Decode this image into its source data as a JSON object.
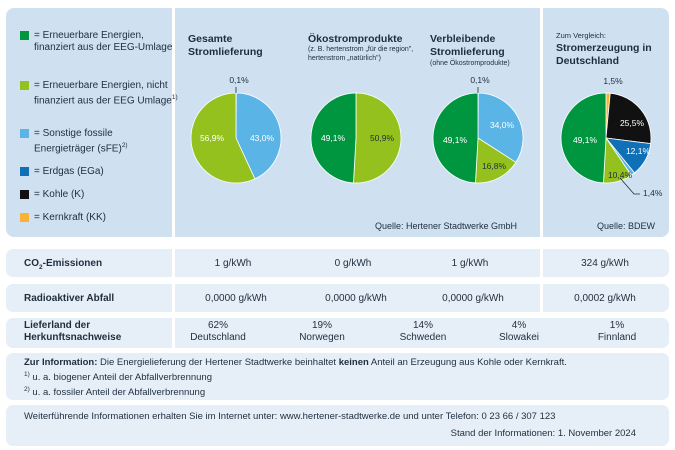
{
  "colors": {
    "ee_funded": "#009640",
    "ee_unfunded": "#95c11f",
    "fossil_other": "#5ab4e5",
    "gas": "#0f70b7",
    "coal": "#111111",
    "nuclear": "#f9b233"
  },
  "legend": [
    {
      "key": "ee_funded",
      "label": "= Erneuerbare Energien, finanziert aus der EEG-Umlage"
    },
    {
      "key": "ee_unfunded",
      "label": "= Erneuerbare Energien, nicht finanziert aus der EEG Umlage",
      "sup": "1)"
    },
    {
      "key": "fossil_other",
      "label": "= Sonstige fossile Energieträger (sFE)",
      "sup": "2)"
    },
    {
      "key": "gas",
      "label": "= Erdgas (EGa)"
    },
    {
      "key": "coal",
      "label": "= Kohle (K)"
    },
    {
      "key": "nuclear",
      "label": "= Kernkraft (KK)"
    }
  ],
  "panels": {
    "gesamt": {
      "title": "Gesamte Stromlieferung"
    },
    "oeko": {
      "title": "Ökostromprodukte",
      "subtitle": "(z. B. hertenstrom „für die region\", hertenstrom „natürlich\")"
    },
    "rest": {
      "title": "Verbleibende Stromlieferung",
      "subtitle": "(ohne Ökostromprodukte)"
    },
    "vergleich": {
      "small": "Zum Vergleich:",
      "title": "Stromerzeugung in Deutschland"
    }
  },
  "chart_data": [
    {
      "type": "pie",
      "name": "gesamt",
      "slices": [
        {
          "key": "ee_funded",
          "value": 0.1,
          "label": "0,1%"
        },
        {
          "key": "fossil_other",
          "value": 43.0,
          "label": "43,0%"
        },
        {
          "key": "ee_unfunded",
          "value": 56.9,
          "label": "56,9%"
        }
      ]
    },
    {
      "type": "pie",
      "name": "oeko",
      "slices": [
        {
          "key": "ee_unfunded",
          "value": 50.9,
          "label": "50,9%"
        },
        {
          "key": "ee_funded",
          "value": 49.1,
          "label": "49,1%"
        }
      ]
    },
    {
      "type": "pie",
      "name": "rest",
      "slices": [
        {
          "key": "gas",
          "value": 0.1,
          "label": "0,1%"
        },
        {
          "key": "fossil_other",
          "value": 34.0,
          "label": "34,0%"
        },
        {
          "key": "ee_unfunded",
          "value": 16.8,
          "label": "16,8%"
        },
        {
          "key": "ee_funded",
          "value": 49.1,
          "label": "49,1%"
        }
      ]
    },
    {
      "type": "pie",
      "name": "vergleich",
      "slices": [
        {
          "key": "nuclear",
          "value": 1.5,
          "label": "1,5%"
        },
        {
          "key": "coal",
          "value": 25.5,
          "label": "25,5%"
        },
        {
          "key": "gas",
          "value": 12.1,
          "label": "12,1%"
        },
        {
          "key": "fossil_other",
          "value": 1.4,
          "label": "1,4%"
        },
        {
          "key": "ee_unfunded",
          "value": 10.4,
          "label": "10,4%"
        },
        {
          "key": "ee_funded",
          "value": 49.1,
          "label": "49,1%"
        }
      ]
    }
  ],
  "sources": {
    "hertener": "Quelle: Hertener Stadtwerke GmbH",
    "bdew": "Quelle: BDEW"
  },
  "co2": {
    "pre": "CO",
    "sub": "2",
    "post": "-Emissionen",
    "values": [
      "1 g/kWh",
      "0 g/kWh",
      "1 g/kWh",
      "324 g/kWh"
    ]
  },
  "radio": {
    "label": "Radioaktiver Abfall",
    "values": [
      "0,0000 g/kWh",
      "0,0000 g/kWh",
      "0,0000 g/kWh",
      "0,0002 g/kWh"
    ]
  },
  "herkunft": {
    "label1": "Lieferland der",
    "label2": "Herkunftsnachweise",
    "entries": [
      {
        "pct": "62%",
        "country": "Deutschland"
      },
      {
        "pct": "19%",
        "country": "Norwegen"
      },
      {
        "pct": "14%",
        "country": "Schweden"
      },
      {
        "pct": "4%",
        "country": "Slowakei"
      },
      {
        "pct": "1%",
        "country": "Finnland"
      }
    ]
  },
  "info": {
    "bold": "Zur Information:",
    "pre": " Die Energielieferung der Hertener Stadtwerke beinhaltet ",
    "bold2": "keinen",
    "post": " Anteil an Erzeugung aus Kohle oder Kernkraft.",
    "note1_sup": "1)",
    "note1": " u. a. biogener Anteil der Abfallverbrennung",
    "note2_sup": "2)",
    "note2": " u. a. fossiler Anteil der Abfallverbrennung"
  },
  "footer": {
    "line1": "Weiterführende Informationen erhalten Sie im Internet unter: www.hertener-stadtwerke.de und unter Telefon: 0 23 66 / 307 123",
    "line2": "Stand der Informationen: 1. November 2024"
  }
}
